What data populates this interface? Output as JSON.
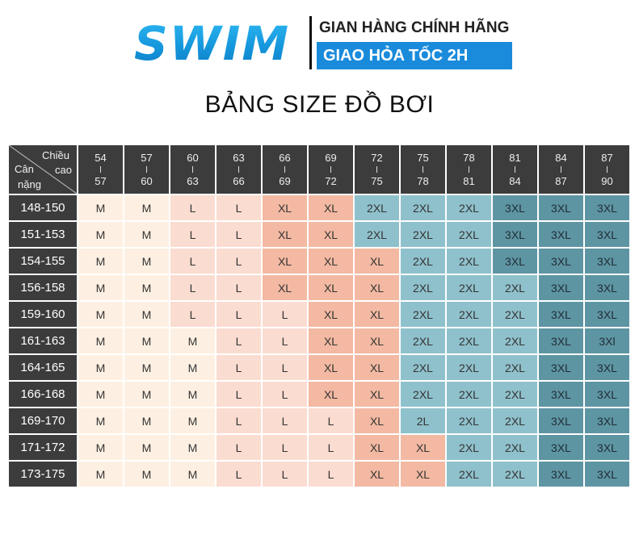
{
  "header": {
    "logo_text": "SWIM",
    "tagline_top": "GIAN HÀNG CHÍNH HÃNG",
    "tagline_bottom": "GIAO HỎA TỐC 2H"
  },
  "title": "BẢNG SIZE ĐỒ BƠI",
  "table": {
    "corner": {
      "height_label_1": "Chiều",
      "height_label_2": "cao",
      "weight_label_1": "Cân",
      "weight_label_2": "nặng"
    },
    "columns": [
      {
        "from": "54",
        "to": "57"
      },
      {
        "from": "57",
        "to": "60"
      },
      {
        "from": "60",
        "to": "63"
      },
      {
        "from": "63",
        "to": "66"
      },
      {
        "from": "66",
        "to": "69"
      },
      {
        "from": "69",
        "to": "72"
      },
      {
        "from": "72",
        "to": "75"
      },
      {
        "from": "75",
        "to": "78"
      },
      {
        "from": "78",
        "to": "81"
      },
      {
        "from": "81",
        "to": "84"
      },
      {
        "from": "84",
        "to": "87"
      },
      {
        "from": "87",
        "to": "90"
      }
    ],
    "rows": [
      {
        "label": "148-150",
        "cells": [
          "M",
          "M",
          "L",
          "L",
          "XL",
          "XL",
          "2XL",
          "2XL",
          "2XL",
          "3XL",
          "3XL",
          "3XL"
        ]
      },
      {
        "label": "151-153",
        "cells": [
          "M",
          "M",
          "L",
          "L",
          "XL",
          "XL",
          "2XL",
          "2XL",
          "2XL",
          "3XL",
          "3XL",
          "3XL"
        ]
      },
      {
        "label": "154-155",
        "cells": [
          "M",
          "M",
          "L",
          "L",
          "XL",
          "XL",
          "XL",
          "2XL",
          "2XL",
          "3XL",
          "3XL",
          "3XL"
        ]
      },
      {
        "label": "156-158",
        "cells": [
          "M",
          "M",
          "L",
          "L",
          "XL",
          "XL",
          "XL",
          "2XL",
          "2XL",
          "2XL",
          "3XL",
          "3XL"
        ]
      },
      {
        "label": "159-160",
        "cells": [
          "M",
          "M",
          "L",
          "L",
          "L",
          "XL",
          "XL",
          "2XL",
          "2XL",
          "2XL",
          "3XL",
          "3XL"
        ]
      },
      {
        "label": "161-163",
        "cells": [
          "M",
          "M",
          "M",
          "L",
          "L",
          "XL",
          "XL",
          "2XL",
          "2XL",
          "2XL",
          "3XL",
          "3Xl"
        ]
      },
      {
        "label": "164-165",
        "cells": [
          "M",
          "M",
          "M",
          "L",
          "L",
          "XL",
          "XL",
          "2XL",
          "2XL",
          "2XL",
          "3XL",
          "3XL"
        ]
      },
      {
        "label": "166-168",
        "cells": [
          "M",
          "M",
          "M",
          "L",
          "L",
          "XL",
          "XL",
          "2XL",
          "2XL",
          "2XL",
          "3XL",
          "3XL"
        ]
      },
      {
        "label": "169-170",
        "cells": [
          "M",
          "M",
          "M",
          "L",
          "L",
          "L",
          "XL",
          "2L",
          "2XL",
          "2XL",
          "3XL",
          "3XL"
        ]
      },
      {
        "label": "171-172",
        "cells": [
          "M",
          "M",
          "M",
          "L",
          "L",
          "L",
          "XL",
          "XL",
          "2XL",
          "2XL",
          "3XL",
          "3XL"
        ]
      },
      {
        "label": "173-175",
        "cells": [
          "M",
          "M",
          "M",
          "L",
          "L",
          "L",
          "XL",
          "XL",
          "2XL",
          "2XL",
          "3XL",
          "3XL"
        ]
      }
    ],
    "size_colors": {
      "M": "#fdf0e2",
      "L": "#fbdcd1",
      "XL": "#f3b9a2",
      "2XL": "#8fc1cc",
      "3XL": "#5e95a3"
    },
    "header_color": "#3c3c3c"
  }
}
